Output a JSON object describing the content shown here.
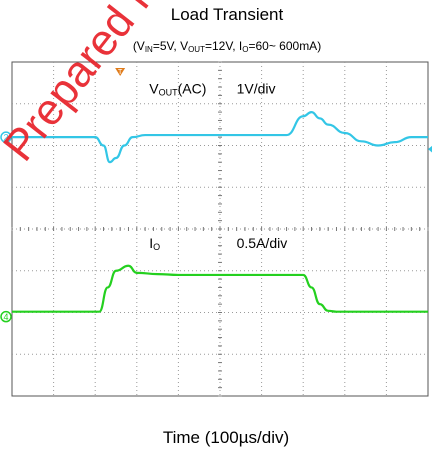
{
  "chart_data": {
    "type": "line",
    "title": "Load Transient",
    "subtitle": {
      "prefix": "(V",
      "vin_sub": "IN",
      "vin_val": "=5V, V",
      "vout_sub": "OUT",
      "vout_val": "=12V, I",
      "io_sub": "O",
      "io_val": "=60~ 600mA)"
    },
    "xlabel": "Time (100µs/div)",
    "grid": true,
    "x_divisions": 10,
    "y_divisions": 8,
    "x_unit": "div",
    "series": [
      {
        "name": "VOUT(AC)",
        "name_main": "V",
        "name_sub": "OUT",
        "name_suffix": "(AC)",
        "scale": "1V/div",
        "color": "#33c6e6",
        "marker": "2",
        "x": [
          0,
          1.0,
          1.5,
          2.0,
          2.2,
          2.35,
          2.5,
          2.7,
          2.9,
          3.2,
          3.5,
          4.0,
          5.0,
          6.0,
          6.6,
          7.0,
          7.2,
          7.4,
          7.6,
          8.0,
          8.4,
          8.8,
          9.2,
          9.6,
          10.0
        ],
        "y": [
          0,
          0,
          0,
          0,
          -0.2,
          -0.6,
          -0.5,
          -0.2,
          0,
          0.05,
          0.05,
          0.05,
          0.05,
          0.05,
          0.05,
          0.5,
          0.6,
          0.45,
          0.3,
          0.1,
          -0.1,
          -0.2,
          -0.12,
          0,
          0
        ]
      },
      {
        "name": "IO",
        "name_main": "I",
        "name_sub": "O",
        "scale": "0.5A/div",
        "color": "#24d01f",
        "marker": "4",
        "x": [
          0,
          1.0,
          2.1,
          2.3,
          2.5,
          2.8,
          3.0,
          3.5,
          4.0,
          5.0,
          6.0,
          7.0,
          7.2,
          7.4,
          7.6,
          7.8,
          8.0,
          9.0,
          10.0
        ],
        "y": [
          0.12,
          0.12,
          0.12,
          0.7,
          1.1,
          1.22,
          1.05,
          1.02,
          1.0,
          1.0,
          1.0,
          1.0,
          0.7,
          0.3,
          0.14,
          0.12,
          0.12,
          0.12,
          0.12
        ]
      }
    ]
  },
  "trigger_marker": "T",
  "watermark": "Prepared fo"
}
